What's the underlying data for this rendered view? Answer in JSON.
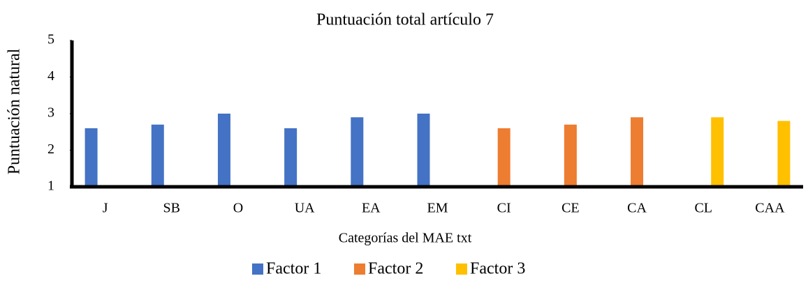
{
  "chart_data": {
    "type": "bar",
    "title": "Puntuación total artículo 7",
    "xlabel": "Categorías del MAE txt",
    "ylabel": "Puntuación natural",
    "categories": [
      "J",
      "SB",
      "O",
      "UA",
      "EA",
      "EM",
      "CI",
      "CE",
      "CA",
      "CL",
      "CAA"
    ],
    "series": [
      {
        "name": "Factor 1",
        "color": "#4472c4",
        "values": [
          2.6,
          2.7,
          3.0,
          2.6,
          2.9,
          3.0,
          null,
          null,
          null,
          null,
          null
        ]
      },
      {
        "name": "Factor 2",
        "color": "#ed7d31",
        "values": [
          null,
          null,
          null,
          null,
          null,
          null,
          2.6,
          2.7,
          2.9,
          null,
          null
        ]
      },
      {
        "name": "Factor 3",
        "color": "#ffc000",
        "values": [
          null,
          null,
          null,
          null,
          null,
          null,
          null,
          null,
          null,
          2.9,
          2.8
        ]
      }
    ],
    "ylim": [
      1,
      5
    ],
    "yticks": [
      1,
      2,
      3,
      4,
      5
    ],
    "grid": false,
    "legend": "bottom"
  }
}
